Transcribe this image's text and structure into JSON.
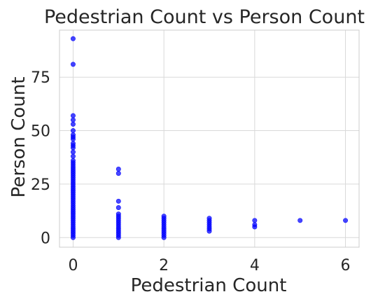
{
  "chart_data": {
    "type": "scatter",
    "title": "Pedestrian Count vs Person Count",
    "xlabel": "Pedestrian Count",
    "ylabel": "Person Count",
    "xlim": [
      -0.3,
      6.3
    ],
    "ylim": [
      -4.5,
      97
    ],
    "xticks": [
      0,
      2,
      4,
      6
    ],
    "yticks": [
      0,
      25,
      50,
      75
    ],
    "grid": true,
    "marker_color": "#0000ff",
    "points": [
      [
        0,
        93
      ],
      [
        0,
        81
      ],
      [
        0,
        57
      ],
      [
        0,
        55
      ],
      [
        0,
        53
      ],
      [
        0,
        50
      ],
      [
        0,
        48
      ],
      [
        0,
        47
      ],
      [
        0,
        46
      ],
      [
        0,
        44
      ],
      [
        0,
        43
      ],
      [
        0,
        42
      ],
      [
        0,
        40
      ],
      [
        0,
        38
      ],
      [
        0,
        36
      ],
      [
        0,
        35
      ],
      [
        0,
        34
      ],
      [
        0,
        33
      ],
      [
        0,
        32
      ],
      [
        0,
        31
      ],
      [
        0,
        30
      ],
      [
        0,
        29
      ],
      [
        0,
        28
      ],
      [
        0,
        27
      ],
      [
        0,
        26
      ],
      [
        0,
        25
      ],
      [
        0,
        24
      ],
      [
        0,
        23
      ],
      [
        0,
        22
      ],
      [
        0,
        21
      ],
      [
        0,
        20
      ],
      [
        0,
        19
      ],
      [
        0,
        18
      ],
      [
        0,
        17
      ],
      [
        0,
        16
      ],
      [
        0,
        15
      ],
      [
        0,
        14
      ],
      [
        0,
        13
      ],
      [
        0,
        12
      ],
      [
        0,
        11
      ],
      [
        0,
        10
      ],
      [
        0,
        9
      ],
      [
        0,
        8
      ],
      [
        0,
        7
      ],
      [
        0,
        6
      ],
      [
        0,
        5
      ],
      [
        0,
        4
      ],
      [
        0,
        3
      ],
      [
        0,
        2
      ],
      [
        0,
        1
      ],
      [
        0,
        0
      ],
      [
        1,
        32
      ],
      [
        1,
        30
      ],
      [
        1,
        17
      ],
      [
        1,
        14
      ],
      [
        1,
        11
      ],
      [
        1,
        10
      ],
      [
        1,
        9
      ],
      [
        1,
        8
      ],
      [
        1,
        7
      ],
      [
        1,
        6
      ],
      [
        1,
        5
      ],
      [
        1,
        4
      ],
      [
        1,
        3
      ],
      [
        1,
        2
      ],
      [
        1,
        1
      ],
      [
        1,
        0
      ],
      [
        2,
        10
      ],
      [
        2,
        9
      ],
      [
        2,
        8
      ],
      [
        2,
        7
      ],
      [
        2,
        6
      ],
      [
        2,
        5
      ],
      [
        2,
        4
      ],
      [
        2,
        3
      ],
      [
        2,
        2
      ],
      [
        2,
        1
      ],
      [
        2,
        0
      ],
      [
        3,
        9
      ],
      [
        3,
        8
      ],
      [
        3,
        7
      ],
      [
        3,
        6
      ],
      [
        3,
        5
      ],
      [
        3,
        4
      ],
      [
        3,
        3
      ],
      [
        4,
        8
      ],
      [
        4,
        6
      ],
      [
        4,
        5
      ],
      [
        5,
        8
      ],
      [
        6,
        8
      ]
    ]
  }
}
